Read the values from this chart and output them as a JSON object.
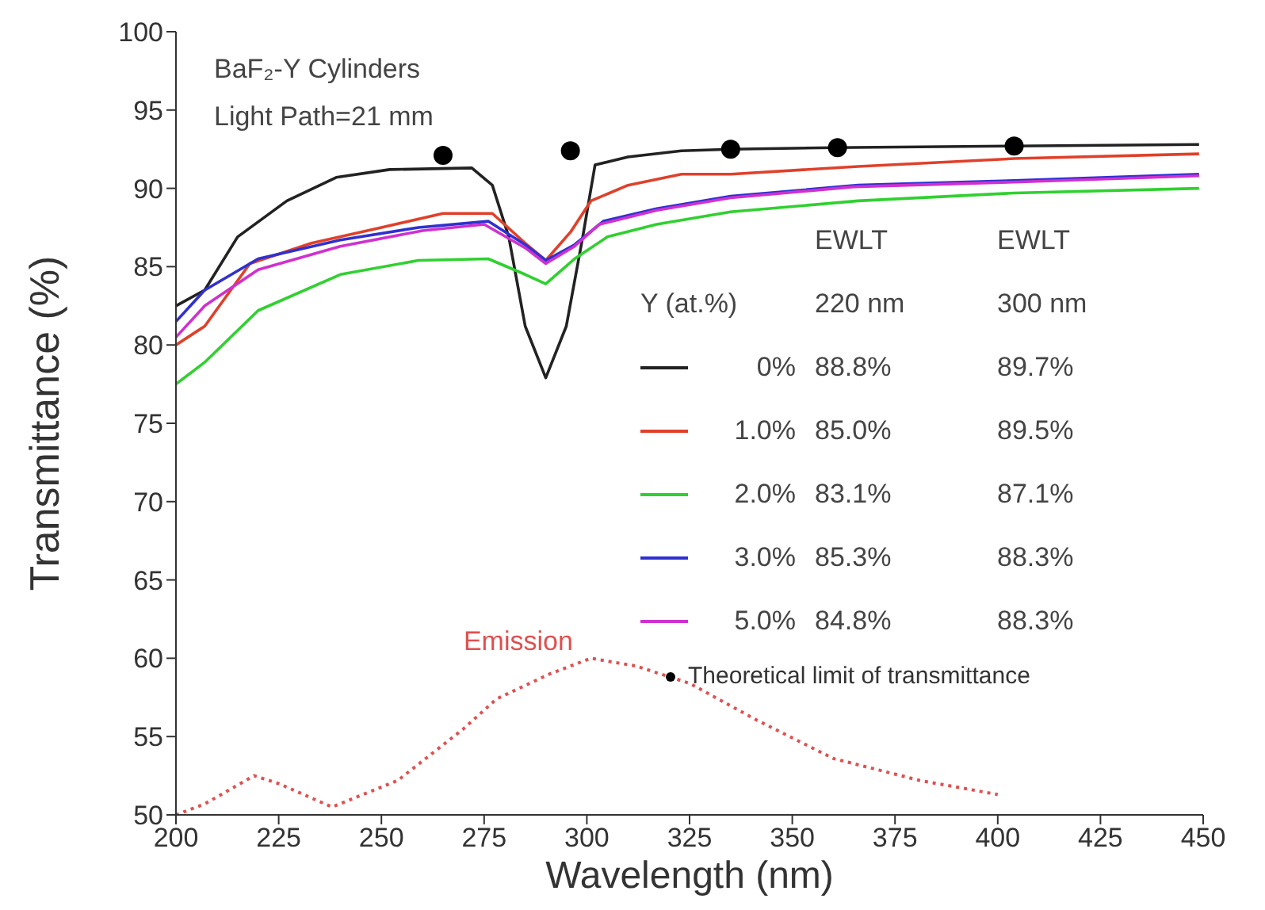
{
  "chart_data": {
    "type": "line",
    "title": "BaF₂-Y Cylinders",
    "subtitle": "Light Path=21 mm",
    "xlabel": "Wavelength (nm)",
    "ylabel": "Transmittance (%)",
    "legend_title": "Y (at.%)",
    "xlim": [
      200,
      450
    ],
    "xticks": [
      200,
      225,
      250,
      275,
      300,
      325,
      350,
      375,
      400,
      425,
      450
    ],
    "ylim": [
      50,
      100
    ],
    "yticks": [
      50,
      55,
      60,
      65,
      70,
      75,
      80,
      85,
      90,
      95,
      100
    ],
    "legend": "right",
    "marker": "none",
    "line_style": "solid",
    "annotations": [
      "EWLT",
      "EWLT",
      "220 nm",
      "300 nm",
      "88.8%",
      "89.7%",
      "85.0%",
      "89.5%",
      "83.1%",
      "87.1%",
      "85.3%",
      "88.3%",
      "84.8%",
      "88.3%",
      "Emission"
    ],
    "series": [
      {
        "name": "0%",
        "color": "#222222",
        "x": [
          200,
          207,
          215,
          227,
          239,
          252,
          272,
          277,
          281,
          285,
          290,
          295,
          299,
          302,
          310,
          323,
          335,
          360,
          404,
          449
        ],
        "values": [
          82.5,
          83.5,
          86.9,
          89.2,
          90.7,
          91.2,
          91.3,
          90.2,
          86.9,
          81.2,
          77.9,
          81.2,
          86.9,
          91.5,
          92.0,
          92.4,
          92.5,
          92.6,
          92.7,
          92.8
        ]
      },
      {
        "name": "1.0%",
        "color": "#e0402a",
        "x": [
          200,
          207,
          218,
          233,
          250,
          265,
          277,
          285,
          290,
          296,
          301,
          310,
          323,
          335,
          366,
          404,
          449
        ],
        "values": [
          80.0,
          81.2,
          85.2,
          86.5,
          87.5,
          88.4,
          88.4,
          86.5,
          85.4,
          87.2,
          89.2,
          90.2,
          90.9,
          90.9,
          91.4,
          91.9,
          92.2
        ]
      },
      {
        "name": "2.0%",
        "color": "#30d030",
        "x": [
          200,
          207,
          220,
          240,
          259,
          276,
          285,
          290,
          297,
          305,
          317,
          335,
          366,
          404,
          449
        ],
        "values": [
          77.5,
          78.9,
          82.2,
          84.5,
          85.4,
          85.5,
          84.5,
          83.9,
          85.5,
          86.9,
          87.7,
          88.5,
          89.2,
          89.7,
          90.0
        ]
      },
      {
        "name": "3.0%",
        "color": "#3030d0",
        "x": [
          200,
          207,
          220,
          240,
          259,
          276,
          285,
          290,
          297,
          304,
          317,
          335,
          366,
          404,
          449
        ],
        "values": [
          81.5,
          83.5,
          85.5,
          86.7,
          87.5,
          87.9,
          86.4,
          85.4,
          86.4,
          87.9,
          88.7,
          89.5,
          90.2,
          90.5,
          90.9
        ]
      },
      {
        "name": "5.0%",
        "color": "#d030d0",
        "x": [
          200,
          207,
          220,
          240,
          260,
          275,
          285,
          290,
          297,
          303,
          317,
          335,
          365,
          404,
          449
        ],
        "values": [
          80.5,
          82.5,
          84.8,
          86.3,
          87.3,
          87.7,
          86.2,
          85.2,
          86.3,
          87.7,
          88.6,
          89.4,
          90.1,
          90.4,
          90.8
        ]
      },
      {
        "color": "#e05050",
        "line_style": "dotted",
        "x": [
          200,
          207,
          219,
          225,
          238,
          254,
          270,
          278,
          291,
          301,
          312,
          325,
          341,
          360,
          381,
          400
        ],
        "values": [
          50.0,
          50.7,
          52.5,
          52.0,
          50.5,
          52.2,
          55.5,
          57.4,
          59.0,
          60.0,
          59.5,
          58.4,
          56.1,
          53.6,
          52.2,
          51.3
        ]
      },
      {
        "name": "Theoretical limit of transmittance",
        "type": "scatter",
        "color": "#000000",
        "marker": "circle",
        "x": [
          265,
          296,
          335,
          361,
          404
        ],
        "values": [
          92.1,
          92.4,
          92.5,
          92.6,
          92.7
        ]
      }
    ]
  }
}
